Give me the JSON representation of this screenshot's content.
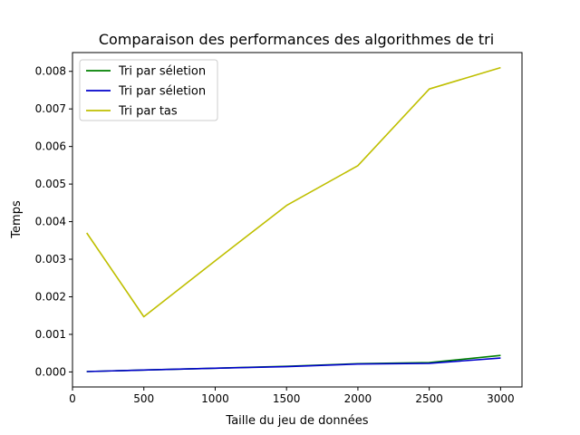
{
  "chart_data": {
    "type": "line",
    "title": "Comparaison des performances des algorithmes de tri",
    "xlabel": "Taille du jeu de données",
    "ylabel": "Temps",
    "xlim": [
      0,
      3150
    ],
    "ylim": [
      -0.0004,
      0.0085
    ],
    "x_ticks": [
      0,
      500,
      1000,
      1500,
      2000,
      2500,
      3000
    ],
    "x_tick_labels": [
      "0",
      "500",
      "1000",
      "1500",
      "2000",
      "2500",
      "3000"
    ],
    "y_ticks": [
      0,
      0.001,
      0.002,
      0.003,
      0.004,
      0.005,
      0.006,
      0.007,
      0.008
    ],
    "y_tick_labels": [
      "0.000",
      "0.001",
      "0.002",
      "0.003",
      "0.004",
      "0.005",
      "0.006",
      "0.007",
      "0.008"
    ],
    "grid": false,
    "legend_position": "top-left",
    "x": [
      100,
      500,
      1000,
      1500,
      2000,
      2500,
      3000
    ],
    "series": [
      {
        "name": "Tri par séletion",
        "color": "#008000",
        "values": [
          1e-05,
          5e-05,
          0.0001,
          0.00015,
          0.00022,
          0.00025,
          0.00044
        ]
      },
      {
        "name": "Tri par séletion",
        "color": "#0000cc",
        "values": [
          1e-05,
          5e-05,
          0.0001,
          0.00014,
          0.00021,
          0.00023,
          0.00037
        ]
      },
      {
        "name": "Tri par tas",
        "color": "#bfbf00",
        "values": [
          0.0037,
          0.00147,
          0.00296,
          0.00443,
          0.00549,
          0.00753,
          0.0081
        ]
      }
    ]
  }
}
